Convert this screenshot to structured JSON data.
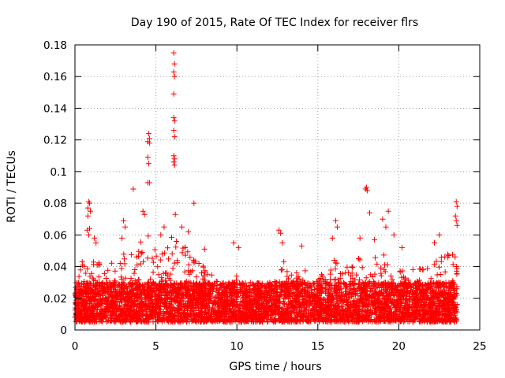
{
  "chart_data": {
    "type": "scatter",
    "title": "Day 190 of 2015, Rate Of TEC Index for receiver flrs",
    "xlabel": "GPS time / hours",
    "ylabel": "ROTI / TECUs",
    "xlim": [
      0,
      25
    ],
    "ylim": [
      0,
      0.18
    ],
    "grid": true,
    "x_ticks": [
      0,
      5,
      10,
      15,
      20,
      25
    ],
    "x_tick_labels": [
      "0",
      "5",
      "10",
      "15",
      "20",
      "25"
    ],
    "y_ticks": [
      0,
      0.02,
      0.04,
      0.06,
      0.08,
      0.1,
      0.12,
      0.14,
      0.16,
      0.18
    ],
    "y_tick_labels": [
      "0",
      "0.02",
      "0.04",
      "0.06",
      "0.08",
      "0.1",
      "0.12",
      "0.14",
      "0.16",
      "0.18"
    ],
    "marker": "+",
    "marker_color": "#ff0000",
    "x_data_range": [
      0,
      23.6
    ],
    "base_level": [
      0.005,
      0.03
    ],
    "series": [
      {
        "name": "ROTI",
        "outliers": [
          [
            6.1,
            0.175
          ],
          [
            6.15,
            0.168
          ],
          [
            6.1,
            0.163
          ],
          [
            6.15,
            0.16
          ],
          [
            6.1,
            0.149
          ],
          [
            6.1,
            0.134
          ],
          [
            6.15,
            0.132
          ],
          [
            6.1,
            0.126
          ],
          [
            6.15,
            0.122
          ],
          [
            6.1,
            0.11
          ],
          [
            6.15,
            0.108
          ],
          [
            6.1,
            0.106
          ],
          [
            6.15,
            0.104
          ],
          [
            4.55,
            0.124
          ],
          [
            4.6,
            0.121
          ],
          [
            4.5,
            0.119
          ],
          [
            4.6,
            0.118
          ],
          [
            4.5,
            0.109
          ],
          [
            4.55,
            0.105
          ],
          [
            4.5,
            0.093
          ],
          [
            4.6,
            0.093
          ],
          [
            3.6,
            0.089
          ],
          [
            7.35,
            0.08
          ],
          [
            6.2,
            0.073
          ],
          [
            0.85,
            0.081
          ],
          [
            0.9,
            0.08
          ],
          [
            0.8,
            0.077
          ],
          [
            0.95,
            0.075
          ],
          [
            0.8,
            0.072
          ],
          [
            0.75,
            0.063
          ],
          [
            0.9,
            0.064
          ],
          [
            0.85,
            0.06
          ],
          [
            17.95,
            0.089
          ],
          [
            18.05,
            0.088
          ],
          [
            18.0,
            0.09
          ],
          [
            18.2,
            0.074
          ],
          [
            19.0,
            0.07
          ],
          [
            19.2,
            0.065
          ],
          [
            19.35,
            0.075
          ],
          [
            23.55,
            0.081
          ],
          [
            23.6,
            0.078
          ],
          [
            23.5,
            0.072
          ],
          [
            23.55,
            0.069
          ],
          [
            23.6,
            0.066
          ],
          [
            16.1,
            0.069
          ],
          [
            16.2,
            0.065
          ],
          [
            12.6,
            0.063
          ],
          [
            12.7,
            0.061
          ],
          [
            12.8,
            0.055
          ],
          [
            3.0,
            0.069
          ],
          [
            3.1,
            0.065
          ],
          [
            4.2,
            0.075
          ],
          [
            4.3,
            0.073
          ],
          [
            5.5,
            0.065
          ],
          [
            6.6,
            0.065
          ],
          [
            7.0,
            0.062
          ],
          [
            9.8,
            0.055
          ],
          [
            10.1,
            0.052
          ],
          [
            1.2,
            0.058
          ],
          [
            1.3,
            0.055
          ],
          [
            2.9,
            0.058
          ],
          [
            5.3,
            0.06
          ],
          [
            8.0,
            0.051
          ],
          [
            14.0,
            0.053
          ],
          [
            15.9,
            0.058
          ],
          [
            17.6,
            0.058
          ],
          [
            18.5,
            0.057
          ],
          [
            19.7,
            0.06
          ],
          [
            20.2,
            0.052
          ],
          [
            22.2,
            0.055
          ],
          [
            22.5,
            0.06
          ]
        ],
        "envelope": [
          [
            0,
            0.03
          ],
          [
            0.5,
            0.045
          ],
          [
            1.0,
            0.05
          ],
          [
            1.5,
            0.042
          ],
          [
            2.0,
            0.04
          ],
          [
            2.5,
            0.045
          ],
          [
            3.0,
            0.05
          ],
          [
            3.5,
            0.05
          ],
          [
            4.0,
            0.055
          ],
          [
            4.5,
            0.06
          ],
          [
            5.0,
            0.05
          ],
          [
            5.5,
            0.05
          ],
          [
            6.0,
            0.06
          ],
          [
            6.5,
            0.058
          ],
          [
            7.0,
            0.05
          ],
          [
            7.5,
            0.045
          ],
          [
            8.0,
            0.04
          ],
          [
            8.5,
            0.035
          ],
          [
            9.0,
            0.03
          ],
          [
            9.5,
            0.03
          ],
          [
            10.0,
            0.035
          ],
          [
            10.5,
            0.028
          ],
          [
            11.0,
            0.025
          ],
          [
            11.5,
            0.026
          ],
          [
            12.0,
            0.03
          ],
          [
            12.5,
            0.04
          ],
          [
            13.0,
            0.045
          ],
          [
            13.5,
            0.04
          ],
          [
            14.0,
            0.04
          ],
          [
            14.5,
            0.035
          ],
          [
            15.0,
            0.032
          ],
          [
            15.5,
            0.04
          ],
          [
            16.0,
            0.048
          ],
          [
            16.5,
            0.04
          ],
          [
            17.0,
            0.04
          ],
          [
            17.5,
            0.045
          ],
          [
            18.0,
            0.048
          ],
          [
            18.5,
            0.048
          ],
          [
            19.0,
            0.05
          ],
          [
            19.5,
            0.04
          ],
          [
            20.0,
            0.038
          ],
          [
            20.5,
            0.038
          ],
          [
            21.0,
            0.04
          ],
          [
            21.5,
            0.04
          ],
          [
            22.0,
            0.042
          ],
          [
            22.5,
            0.045
          ],
          [
            23.0,
            0.05
          ],
          [
            23.6,
            0.05
          ]
        ]
      }
    ]
  }
}
